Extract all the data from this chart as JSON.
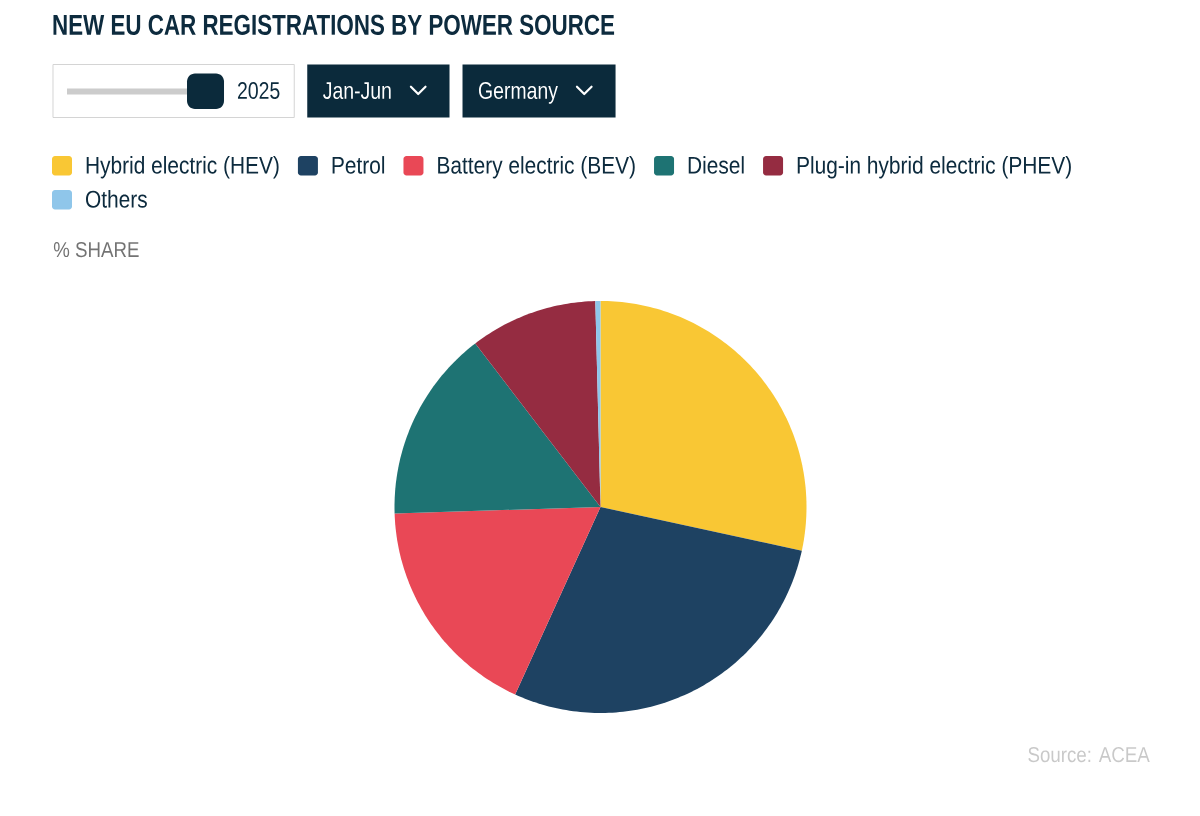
{
  "chart_data": {
    "type": "pie",
    "title": "NEW EU CAR REGISTRATIONS BY POWER SOURCE",
    "subtitle": "% SHARE",
    "categories": [
      "Hybrid electric (HEV)",
      "Petrol",
      "Battery electric (BEV)",
      "Diesel",
      "Plug-in hybrid electric (PHEV)",
      "Others"
    ],
    "values": [
      28.4,
      28.4,
      17.7,
      15.1,
      10.0,
      0.4
    ],
    "colors": [
      "#f9c734",
      "#1e4262",
      "#e94856",
      "#1e7373",
      "#952c41",
      "#8fc6ea"
    ],
    "legend": "top",
    "annotations": [
      "2025",
      "Jan-Jun",
      "Germany",
      "Source: ACEA"
    ]
  }
}
